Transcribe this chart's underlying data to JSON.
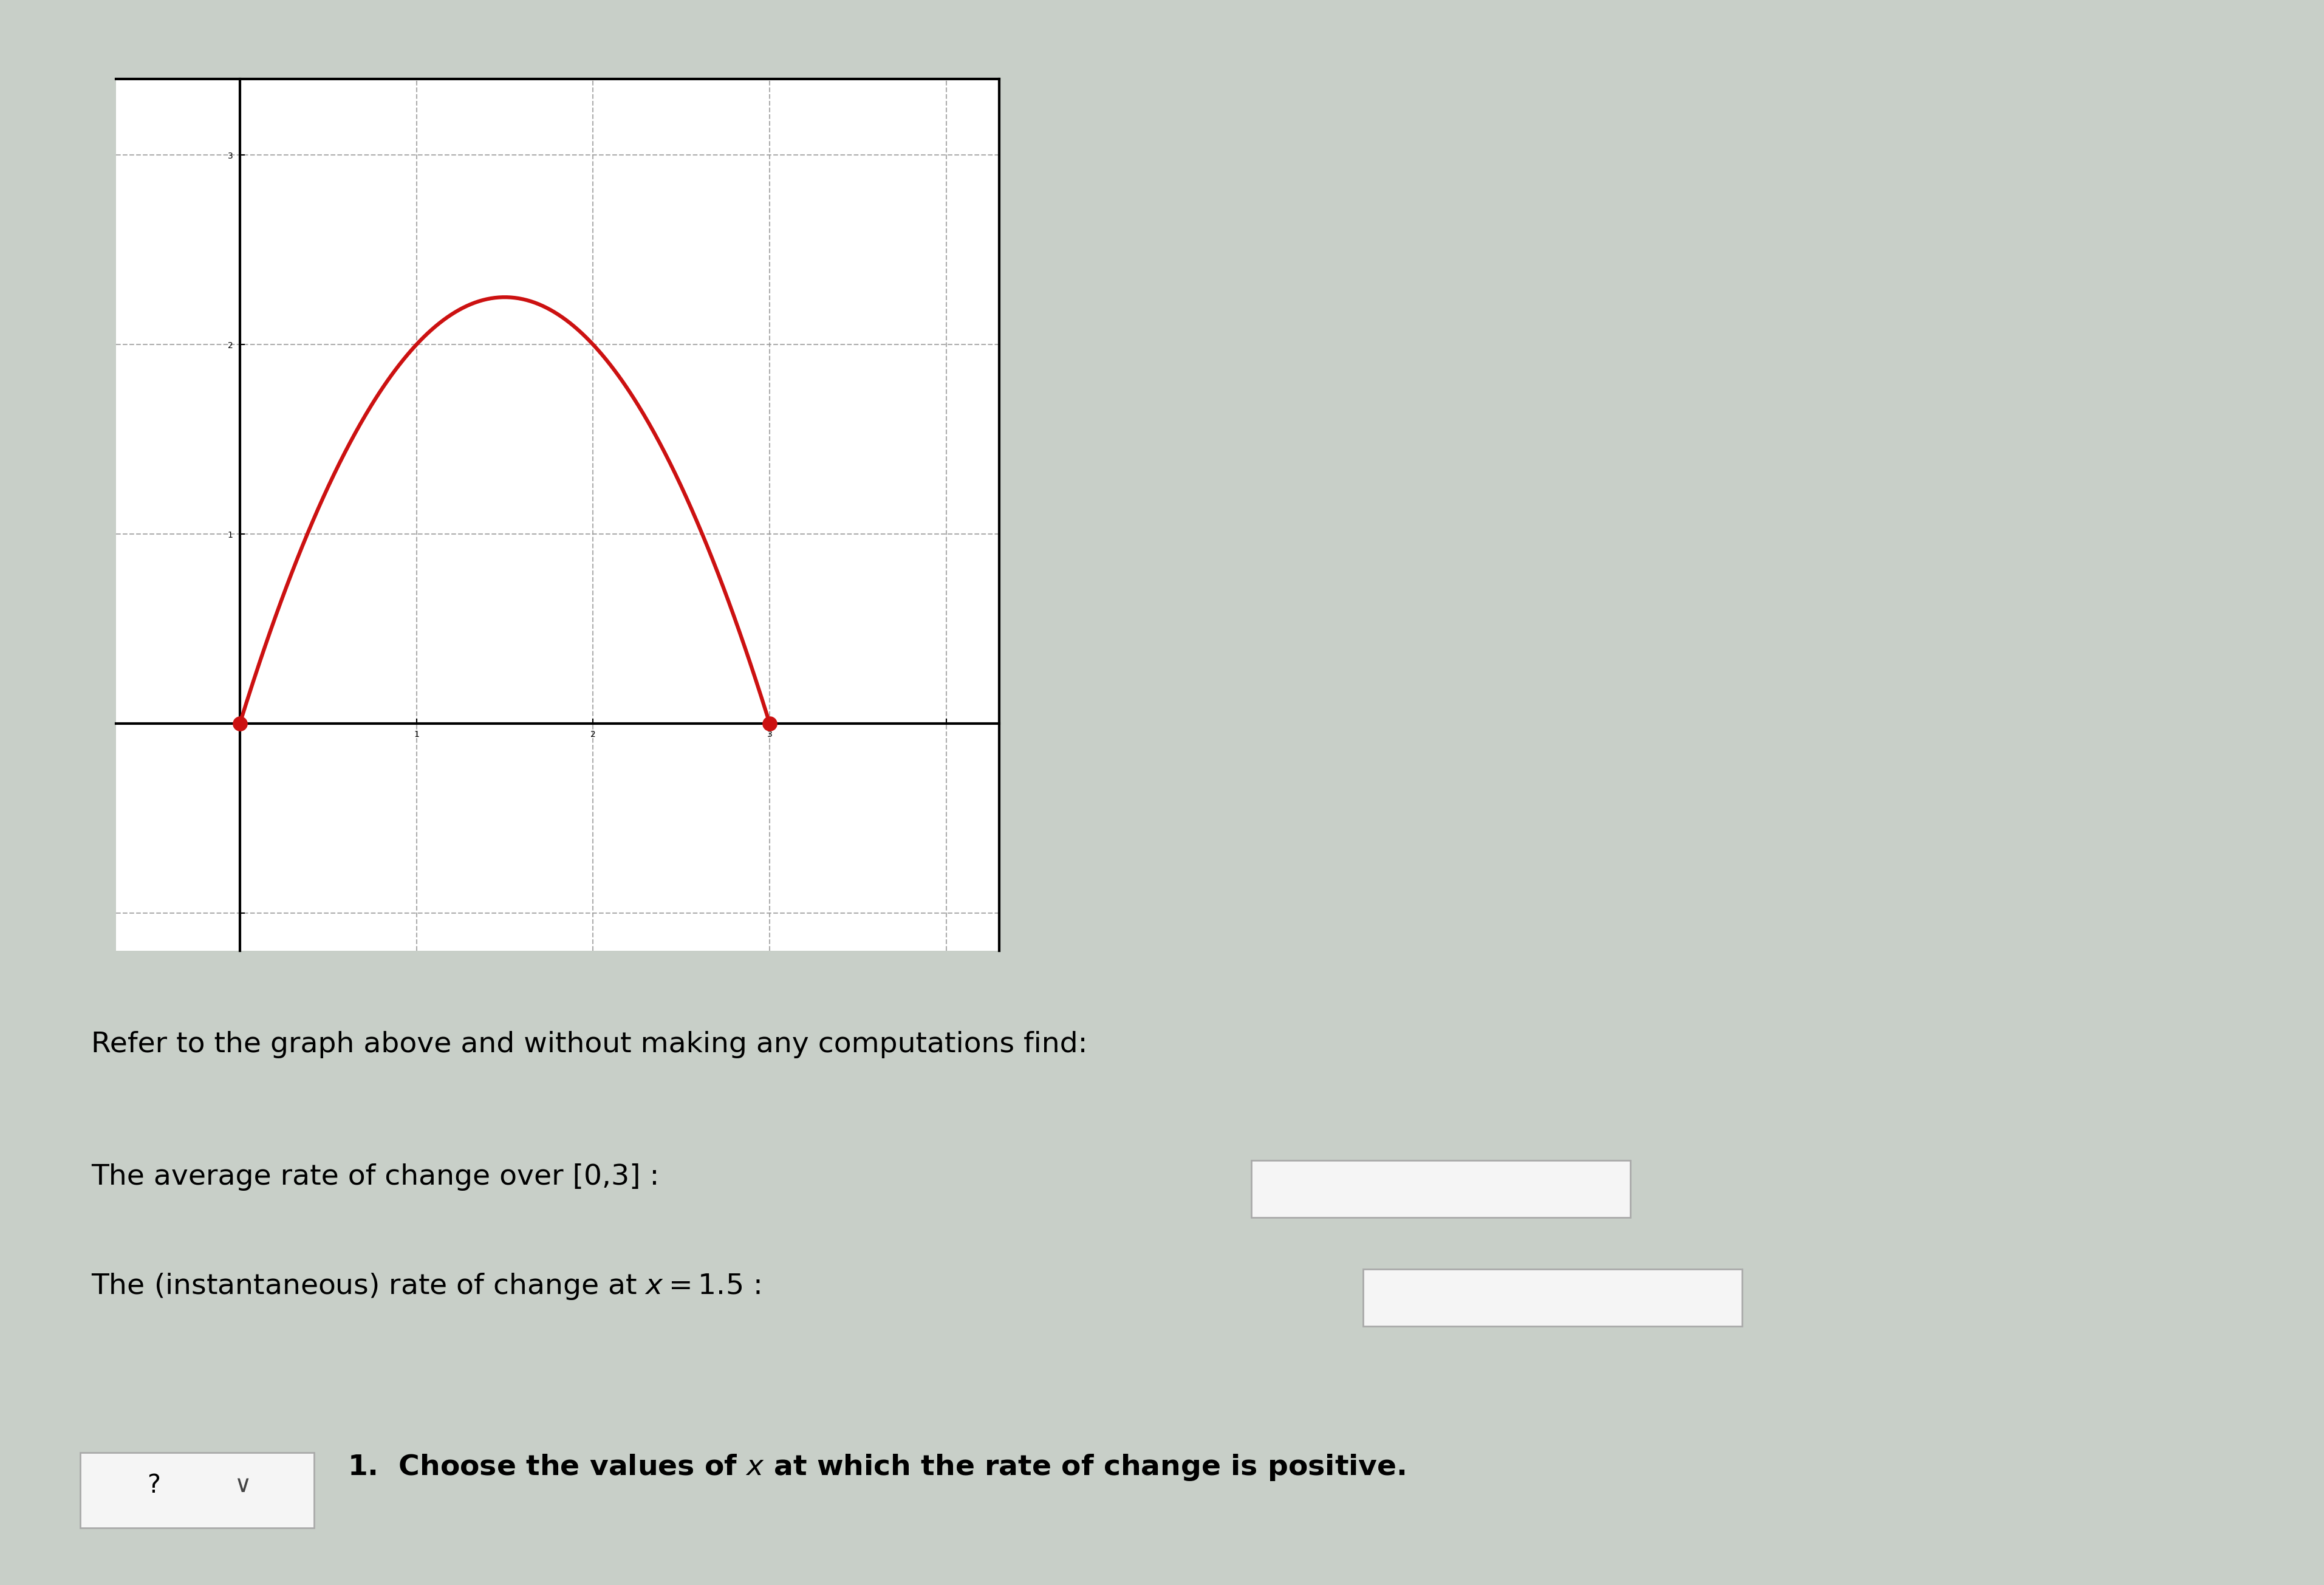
{
  "fig_width": 38.26,
  "fig_height": 26.09,
  "bg_color": "#c8cfc8",
  "plot_bg_color": "#ffffff",
  "graph_xlim": [
    -0.7,
    4.3
  ],
  "graph_ylim": [
    -1.2,
    3.4
  ],
  "curve_color": "#cc1111",
  "curve_linewidth": 4.5,
  "dot_color": "#cc1111",
  "dot_size": 280,
  "grid_color": "#999999",
  "label1_text": "Refer to the graph above and without making any computations find:",
  "label1_fontsize": 34,
  "label2_text": "The average rate of change over [0,3] :",
  "label2_fontsize": 34,
  "label3_text": "The (instantaneous) rate of change at $x = 1.5$ :",
  "label3_fontsize": 34,
  "label4_text": "1.  Choose the values of $x$ at which the rate of change is positive.",
  "label4_fontsize": 34,
  "question_mark_text": "?",
  "box_facecolor": "#f5f5f5",
  "box_edgecolor": "#aaaaaa",
  "tick_fontsize": 32,
  "axes_linewidth": 3.0,
  "border_linewidth": 3.0
}
